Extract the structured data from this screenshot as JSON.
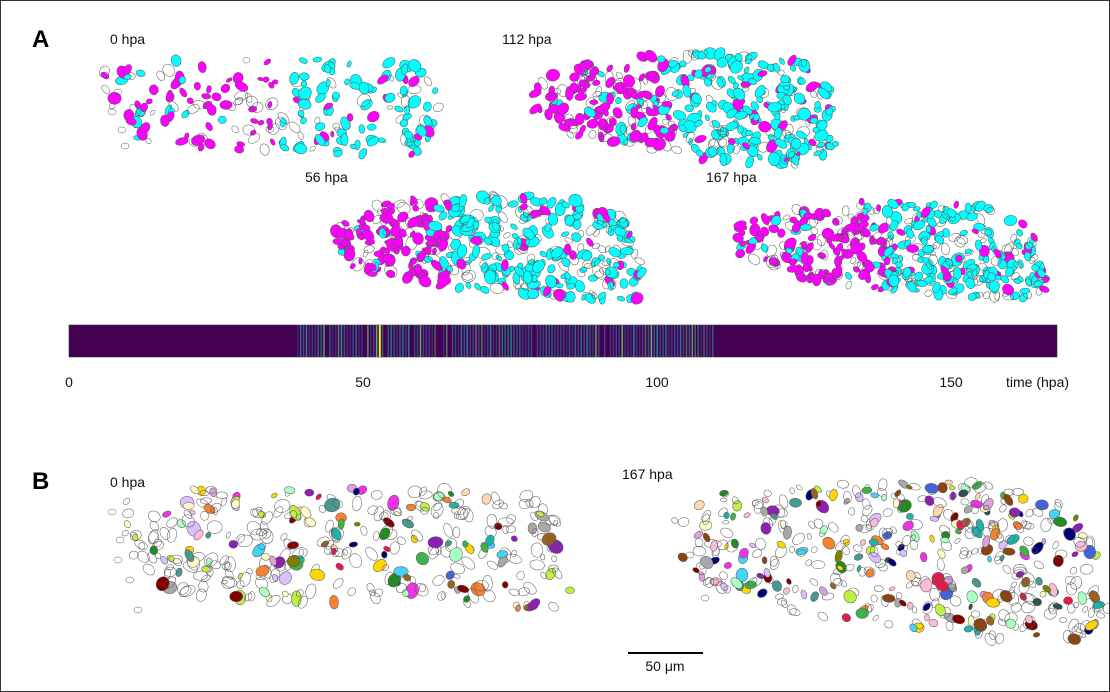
{
  "panel_a": {
    "letter": "A",
    "timepoints": [
      "0 hpa",
      "112 hpa",
      "56 hpa",
      "167 hpa"
    ]
  },
  "timeline": {
    "axis_label": "time (hpa)",
    "ticks": [
      "0",
      "50",
      "100",
      "150"
    ],
    "tick_values": [
      0,
      50,
      100,
      150
    ],
    "range": [
      0,
      169
    ],
    "active_range": [
      39,
      110
    ],
    "highlight": 53,
    "colormap": [
      "#440154",
      "#3b528b",
      "#21918c",
      "#5ec962",
      "#fde725"
    ]
  },
  "panel_b": {
    "letter": "B",
    "timepoints": [
      "0 hpa",
      "167 hpa"
    ],
    "scale_bar": "50 μm"
  },
  "colors": {
    "magenta": "#ff00ff",
    "cyan": "#00ffff",
    "outline": "#555555"
  }
}
